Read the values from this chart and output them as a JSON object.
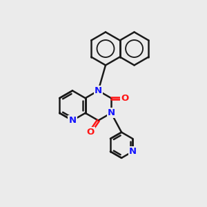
{
  "background_color": "#ebebeb",
  "bond_color": "#1a1a1a",
  "nitrogen_color": "#1414ff",
  "oxygen_color": "#ff1414",
  "lw": 1.8,
  "figsize": [
    3.0,
    3.0
  ],
  "dpi": 100,
  "xlim": [
    0,
    10
  ],
  "ylim": [
    0,
    10
  ]
}
